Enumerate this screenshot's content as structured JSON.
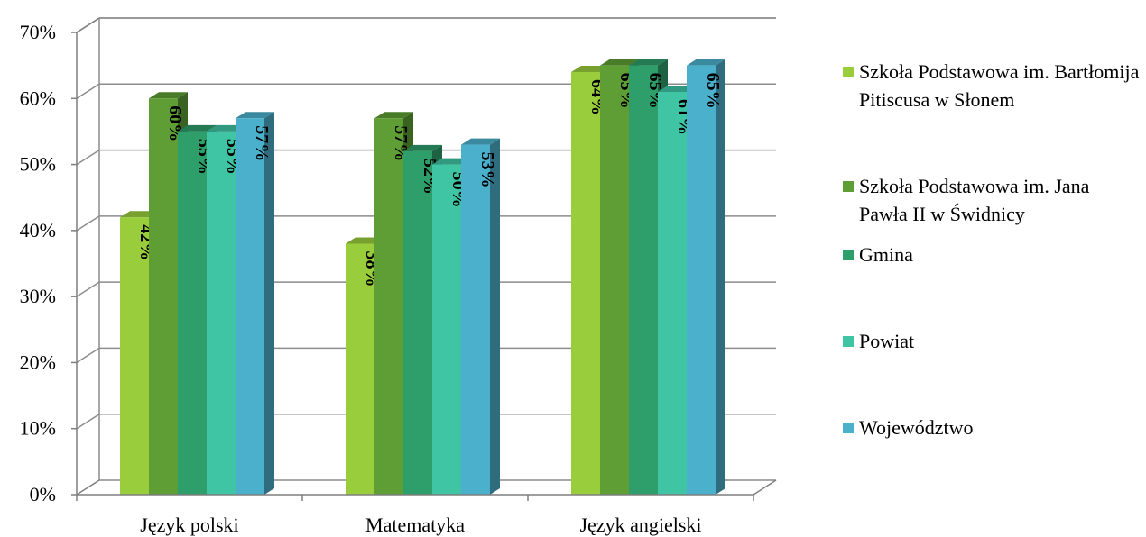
{
  "chart_data": {
    "type": "bar",
    "style": "3d-clustered-column",
    "categories": [
      "Język polski",
      "Matematyka",
      "Język angielski"
    ],
    "series": [
      {
        "name": "Szkoła Podstawowa im. Bartłomija Pitiscusa w Słonem",
        "values": [
          42,
          38,
          64
        ],
        "labels": [
          "42%",
          "38%",
          "64%"
        ],
        "color": "#9acd3c"
      },
      {
        "name": "Szkoła Podstawowa im. Jana Pawła II w Świdnicy",
        "values": [
          60,
          57,
          65
        ],
        "labels": [
          "60%",
          "57%",
          "65%"
        ],
        "color": "#5e9e34"
      },
      {
        "name": "Gmina",
        "values": [
          55,
          52,
          65
        ],
        "labels": [
          "55%",
          "52%",
          "65%"
        ],
        "color": "#2e9e6a"
      },
      {
        "name": "Powiat",
        "values": [
          55,
          50,
          61
        ],
        "labels": [
          "55%",
          "50%",
          "61%"
        ],
        "color": "#3fc4a4"
      },
      {
        "name": "Województwo",
        "values": [
          57,
          53,
          65
        ],
        "labels": [
          "57%",
          "53%",
          "65%"
        ],
        "color": "#4bb0cc"
      }
    ],
    "yticks": [
      "0%",
      "10%",
      "20%",
      "30%",
      "40%",
      "50%",
      "60%",
      "70%"
    ],
    "ylim": [
      0,
      70
    ],
    "grid": true,
    "legend": "right"
  }
}
